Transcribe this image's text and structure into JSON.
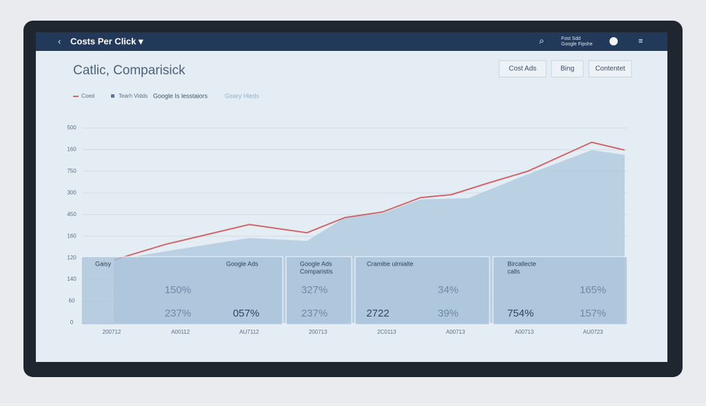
{
  "header": {
    "title": "Costs Per Click ▾",
    "account": [
      "Fost Sdd",
      "Google Fipshe"
    ]
  },
  "buttons": [
    "Cost Ads",
    "Bing",
    "Contentet"
  ],
  "legend_extra": [
    "Google Is lesstaiors",
    "Geary Hieds"
  ],
  "cards": [
    [
      "Gaisy",
      "Google Ads",
      "150%",
      "237%",
      "057%"
    ],
    [
      "Google Ads",
      "Comparistis",
      "327%",
      "237%"
    ],
    [
      "Cramibe ulmialte",
      "34%",
      "2722",
      "39%"
    ],
    [
      "Bircallecte",
      "calls",
      "165%",
      "754%",
      "157%"
    ]
  ],
  "chart_data": {
    "type": "line",
    "title": "Catlic, Comparisick",
    "series": [
      {
        "name": "Coed",
        "color": "#d0666a",
        "kind": "line",
        "x": [
          0.03,
          0.78,
          2.0,
          2.84,
          3.39,
          3.94,
          4.49,
          4.94,
          5.5,
          6.05,
          6.98,
          7.46
        ],
        "values": [
          145,
          181,
          227,
          208,
          243,
          256,
          289,
          296,
          324,
          350,
          417,
          399
        ]
      },
      {
        "name": "Tearh Vidds",
        "color": "#b3cbe0",
        "kind": "area",
        "x": [
          0.03,
          0.78,
          2.0,
          2.84,
          3.39,
          3.94,
          4.49,
          5.19,
          6.0,
          6.98,
          7.46
        ],
        "values": [
          145,
          165,
          196,
          189,
          243,
          253,
          285,
          288,
          340,
          399,
          388
        ]
      }
    ],
    "xlim": [
      0,
      7.5
    ],
    "xticks": [
      {
        "value": 0,
        "label": "200712"
      },
      {
        "value": 1,
        "label": "A00112"
      },
      {
        "value": 2,
        "label": "AU7112"
      },
      {
        "value": 3,
        "label": "200713"
      },
      {
        "value": 4,
        "label": "2C0113"
      },
      {
        "value": 5,
        "label": "A00713"
      },
      {
        "value": 6,
        "label": "A00713"
      },
      {
        "value": 7,
        "label": "AU0723"
      }
    ],
    "ylim": [
      0,
      450
    ],
    "yticks": [
      0,
      {
        "value": 50,
        "label": "60"
      },
      {
        "value": 100,
        "label": "140"
      },
      {
        "value": 150,
        "label": "120"
      },
      {
        "value": 200,
        "label": "160"
      },
      {
        "value": 250,
        "label": "450"
      },
      300,
      {
        "value": 350,
        "label": "750"
      },
      {
        "value": 400,
        "label": "160"
      },
      {
        "value": 450,
        "label": "500"
      }
    ],
    "grid": true
  }
}
